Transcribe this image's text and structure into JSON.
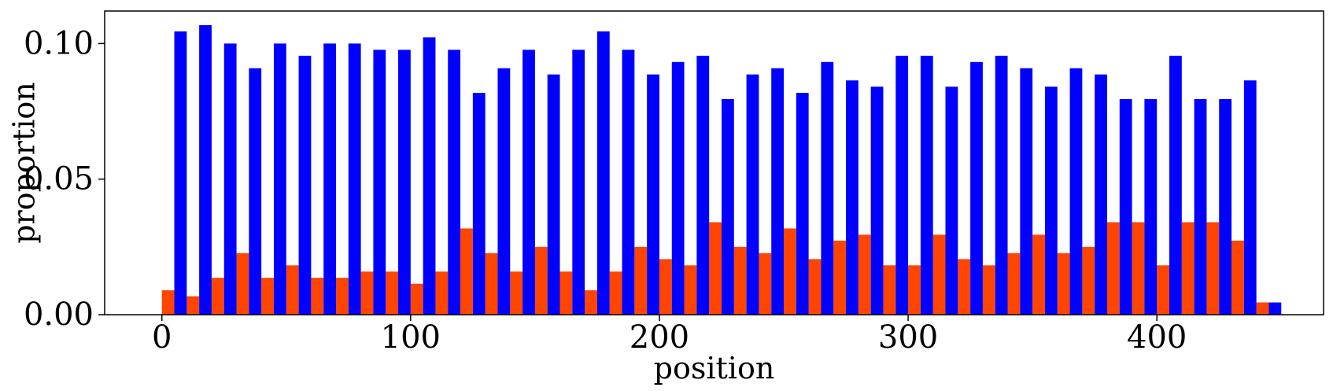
{
  "chart_data": {
    "type": "bar",
    "xlabel": "position",
    "ylabel": "proportion",
    "xlim": [
      -23,
      467
    ],
    "ylim": [
      0,
      0.112
    ],
    "x_ticks": [
      0,
      100,
      200,
      300,
      400
    ],
    "x_tick_labels": [
      "0",
      "100",
      "200",
      "300",
      "400"
    ],
    "y_ticks": [
      0.0,
      0.05,
      0.1
    ],
    "y_tick_labels": [
      "0.00",
      "0.05",
      "0.10"
    ],
    "bin_width": 10,
    "x": [
      0,
      10,
      20,
      30,
      40,
      50,
      60,
      70,
      80,
      90,
      100,
      110,
      120,
      130,
      140,
      150,
      160,
      170,
      180,
      190,
      200,
      210,
      220,
      230,
      240,
      250,
      260,
      270,
      280,
      290,
      300,
      310,
      320,
      330,
      340,
      350,
      360,
      370,
      380,
      390,
      400,
      410,
      420,
      430,
      440
    ],
    "grid": false,
    "legend": "none",
    "series": [
      {
        "color": "#FF4500",
        "values": [
          0.009,
          0.0068,
          0.0136,
          0.0227,
          0.0136,
          0.0182,
          0.0136,
          0.0136,
          0.0159,
          0.0159,
          0.0114,
          0.0159,
          0.0318,
          0.0227,
          0.0159,
          0.025,
          0.0159,
          0.009,
          0.0159,
          0.025,
          0.0205,
          0.0182,
          0.0341,
          0.025,
          0.0227,
          0.0318,
          0.0205,
          0.0273,
          0.0295,
          0.0182,
          0.0182,
          0.0295,
          0.0205,
          0.0182,
          0.0227,
          0.0295,
          0.0227,
          0.025,
          0.0341,
          0.0341,
          0.0182,
          0.0341,
          0.0341,
          0.0273,
          0.0045
        ]
      },
      {
        "color": "#0000FF",
        "values": [
          0.1045,
          0.1068,
          0.1,
          0.0909,
          0.1,
          0.0955,
          0.1,
          0.1,
          0.0977,
          0.0977,
          0.1023,
          0.0977,
          0.0818,
          0.0909,
          0.0977,
          0.0886,
          0.0977,
          0.1045,
          0.0977,
          0.0886,
          0.0932,
          0.0955,
          0.0795,
          0.0886,
          0.0909,
          0.0818,
          0.0932,
          0.0864,
          0.0841,
          0.0955,
          0.0955,
          0.0841,
          0.0932,
          0.0955,
          0.0909,
          0.0841,
          0.0909,
          0.0886,
          0.0795,
          0.0795,
          0.0955,
          0.0795,
          0.0795,
          0.0864,
          0.0045
        ]
      }
    ]
  }
}
